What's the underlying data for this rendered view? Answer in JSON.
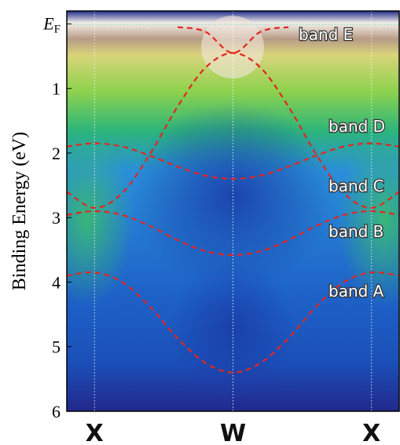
{
  "chart_data": {
    "type": "line",
    "y_label": "Binding Energy (eV)",
    "categories": [
      null,
      "X",
      null,
      null,
      null,
      null,
      "W",
      null,
      null,
      null,
      null,
      "X",
      null
    ],
    "ylim": [
      -0.2,
      6
    ],
    "inverted_y": true,
    "yticks": [
      {
        "value": 0,
        "label": "E",
        "subscript": "F"
      },
      1,
      2,
      3,
      4,
      5,
      6
    ],
    "series": [
      {
        "name": "band E",
        "color": "#e3261f",
        "values": [
          null,
          null,
          null,
          null,
          0.05,
          0.12,
          0.45,
          0.12,
          0.05,
          null,
          null,
          null,
          null
        ]
      },
      {
        "name": "band D",
        "color": "#e3261f",
        "values": [
          1.9,
          1.85,
          1.9,
          2.04,
          2.21,
          2.35,
          2.4,
          2.35,
          2.21,
          2.04,
          1.9,
          1.85,
          1.9
        ]
      },
      {
        "name": "band C",
        "color": "#e3261f",
        "values": [
          2.6,
          2.85,
          2.62,
          2.02,
          1.28,
          0.68,
          0.45,
          0.68,
          1.28,
          2.02,
          2.62,
          2.85,
          2.6
        ]
      },
      {
        "name": "band B",
        "color": "#e3261f",
        "values": [
          2.96,
          2.9,
          2.96,
          3.13,
          3.35,
          3.52,
          3.58,
          3.52,
          3.35,
          3.13,
          2.96,
          2.9,
          2.96
        ]
      },
      {
        "name": "band A",
        "color": "#e3261f",
        "values": [
          3.9,
          3.85,
          4.0,
          4.38,
          4.87,
          5.25,
          5.4,
          5.25,
          4.87,
          4.38,
          4.0,
          3.85,
          3.9
        ]
      }
    ]
  }
}
